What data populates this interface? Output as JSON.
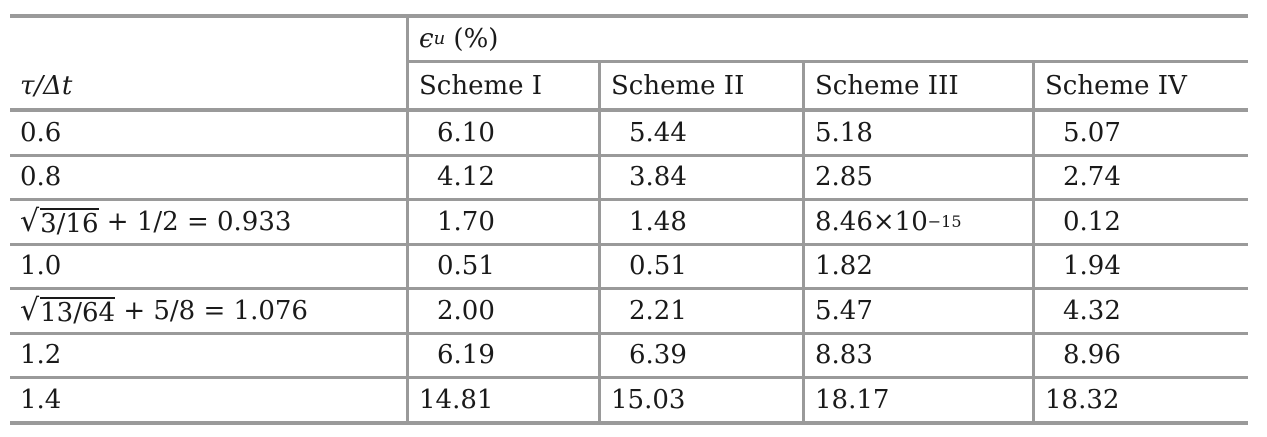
{
  "table": {
    "header": {
      "row_label": "τ/Δt",
      "group_symbol": "ϵ",
      "group_subscript": "u",
      "group_unit": "(%)",
      "schemes": [
        "Scheme I",
        "Scheme II",
        "Scheme III",
        "Scheme IV"
      ]
    },
    "rows": [
      {
        "label": "0.6",
        "values": [
          "6.10",
          "5.44",
          "5.18",
          "5.07"
        ]
      },
      {
        "label": "0.8",
        "values": [
          "4.12",
          "3.84",
          "2.85",
          "2.74"
        ]
      },
      {
        "label_sqrt": "3/16",
        "label_rest": "+ 1/2 = 0.933",
        "values": [
          "1.70",
          "1.48",
          "8.46×10",
          "0.12"
        ],
        "exponent": "−15"
      },
      {
        "label": "1.0",
        "values": [
          "0.51",
          "0.51",
          "1.82",
          "1.94"
        ]
      },
      {
        "label_sqrt": "13/64",
        "label_rest": "+ 5/8 = 1.076",
        "values": [
          "2.00",
          "2.21",
          "5.47",
          "4.32"
        ]
      },
      {
        "label": "1.2",
        "values": [
          "6.19",
          "6.39",
          "8.83",
          "8.96"
        ]
      },
      {
        "label": "1.4",
        "values": [
          "14.81",
          "15.03",
          "18.17",
          "18.32"
        ]
      }
    ]
  }
}
